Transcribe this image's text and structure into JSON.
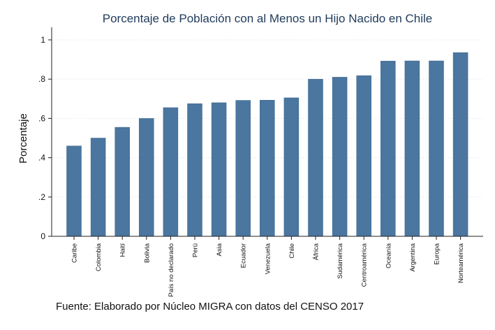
{
  "chart_data": {
    "type": "bar",
    "title": "Porcentaje de Población con al Menos un Hijo Nacido en Chile",
    "ylabel": "Porcentaje",
    "xlabel": "",
    "categories": [
      "Caribe",
      "Colombia",
      "Haití",
      "Bolivia",
      "País no declarado",
      "Perú",
      "Asia",
      "Ecuador",
      "Venezuela",
      "Chile",
      "África",
      "Sudamérica",
      "Centroamérica",
      "Oceanía",
      "Argentina",
      "Europa",
      "Norteamérica"
    ],
    "values": [
      0.46,
      0.5,
      0.555,
      0.6,
      0.655,
      0.675,
      0.68,
      0.692,
      0.693,
      0.705,
      0.8,
      0.81,
      0.818,
      0.892,
      0.893,
      0.893,
      0.935
    ],
    "ylim": [
      0,
      1
    ],
    "yticks": [
      0,
      0.2,
      0.4,
      0.6,
      0.8,
      1
    ],
    "ytick_labels": [
      "0",
      ".2",
      ".4",
      ".6",
      ".8",
      "1"
    ],
    "grid": true,
    "bar_color": "#4a76a0"
  },
  "source_note": "Fuente: Elaborado por Núcleo MIGRA con datos del CENSO 2017"
}
